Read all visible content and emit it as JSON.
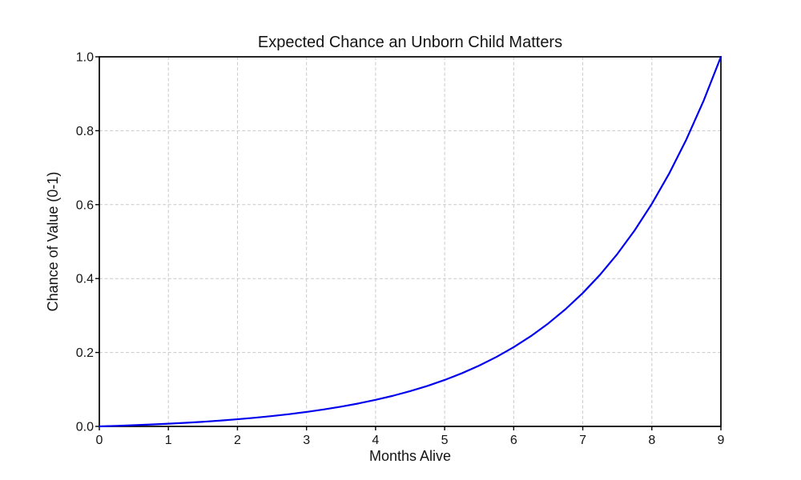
{
  "chart_data": {
    "type": "line",
    "title": "Expected Chance an Unborn Child Matters",
    "xlabel": "Months Alive",
    "ylabel": "Chance of Value (0-1)",
    "xlim": [
      0,
      9
    ],
    "ylim": [
      0.0,
      1.0
    ],
    "x_ticks": [
      0,
      1,
      2,
      3,
      4,
      5,
      6,
      7,
      8,
      9
    ],
    "x_tick_labels": [
      "0",
      "1",
      "2",
      "3",
      "4",
      "5",
      "6",
      "7",
      "8",
      "9"
    ],
    "y_ticks": [
      0.0,
      0.2,
      0.4,
      0.6,
      0.8,
      1.0
    ],
    "y_tick_labels": [
      "0.0",
      "0.2",
      "0.4",
      "0.6",
      "0.8",
      "1.0"
    ],
    "grid": true,
    "grid_style": "dashed",
    "legend": false,
    "line_color": "#0000ee",
    "grid_color": "#c9c9c9",
    "axis_color": "#000000",
    "text_color": "#141414",
    "background_color": "#ffffff",
    "series": [
      {
        "name": "chance-of-value",
        "x": [
          0,
          0.25,
          0.5,
          0.75,
          1,
          1.25,
          1.5,
          1.75,
          2,
          2.25,
          2.5,
          2.75,
          3,
          3.25,
          3.5,
          3.75,
          4,
          4.25,
          4.5,
          4.75,
          5,
          5.25,
          5.5,
          5.75,
          6,
          6.25,
          6.5,
          6.75,
          7,
          7.25,
          7.5,
          7.75,
          8,
          8.25,
          8.5,
          8.75,
          9
        ],
        "y": [
          0.0,
          0.0015,
          0.0032,
          0.0051,
          0.0073,
          0.0098,
          0.0125,
          0.0157,
          0.0193,
          0.0234,
          0.028,
          0.0332,
          0.0391,
          0.0458,
          0.0534,
          0.062,
          0.0718,
          0.0828,
          0.0954,
          0.1095,
          0.1256,
          0.1438,
          0.1645,
          0.1879,
          0.2144,
          0.2444,
          0.2785,
          0.3171,
          0.3608,
          0.4103,
          0.4664,
          0.53,
          0.6021,
          0.6838,
          0.7763,
          0.8812,
          1.0
        ]
      }
    ]
  }
}
